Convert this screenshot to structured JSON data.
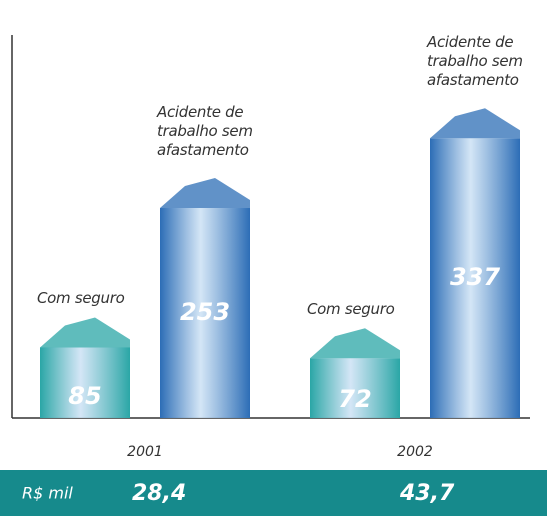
{
  "chart_data": {
    "type": "bar",
    "categories": [
      "2001",
      "2002"
    ],
    "series": [
      {
        "name": "Com seguro",
        "color": "#2aa6a6",
        "values": [
          85,
          72
        ]
      },
      {
        "name": "Acidente de trabalho sem afastamento",
        "color": "#2c6db6",
        "values": [
          253,
          337
        ]
      }
    ],
    "band_label": "R$ mil",
    "band_values": [
      28.4,
      43.7
    ],
    "band_value_labels": [
      "28,4",
      "43,7"
    ]
  }
}
